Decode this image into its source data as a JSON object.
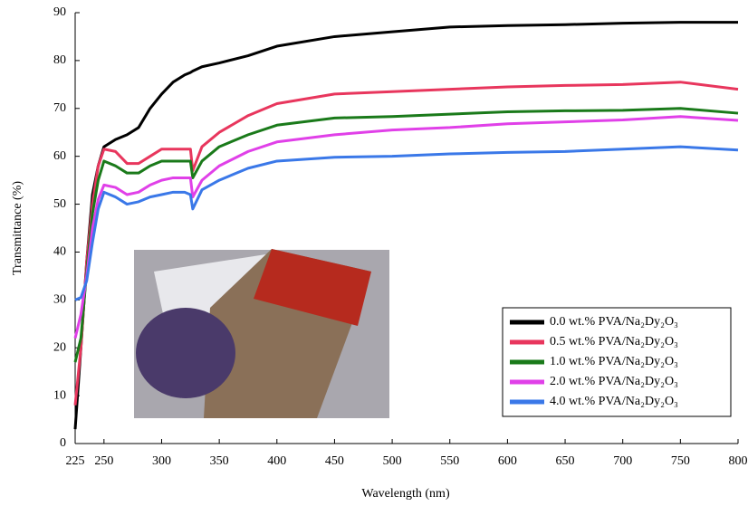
{
  "chart_data": {
    "type": "line",
    "x_label": "Wavelength (nm)",
    "y_label": "Transmittance (%)",
    "x": [
      225,
      230,
      235,
      240,
      245,
      250,
      260,
      270,
      280,
      290,
      300,
      310,
      320,
      325,
      327,
      335,
      350,
      375,
      400,
      450,
      500,
      550,
      600,
      650,
      700,
      750,
      800
    ],
    "series": [
      {
        "name": "0.0 wt.% PVA/Na₂Dy₂O₃",
        "color": "#000000",
        "values": [
          3,
          20,
          38,
          52,
          58,
          62,
          63.5,
          64.5,
          66,
          70,
          73,
          75.5,
          77,
          77.5,
          77.8,
          78.7,
          79.5,
          81,
          83,
          85,
          86,
          87,
          87.3,
          87.5,
          87.8,
          88,
          88
        ]
      },
      {
        "name": "0.5 wt.% PVA/Na₂Dy₂O₃",
        "color": "#e8365d",
        "values": [
          8,
          20,
          38,
          50,
          58,
          61.5,
          61,
          58.5,
          58.5,
          60,
          61.5,
          61.5,
          61.5,
          61.5,
          57,
          62,
          65,
          68.5,
          71,
          73,
          73.5,
          74,
          74.5,
          74.8,
          75,
          75.5,
          74
        ]
      },
      {
        "name": "1.0 wt.% PVA/Na₂Dy₂O₃",
        "color": "#1a7a1a",
        "values": [
          17,
          22,
          36,
          48,
          55,
          59,
          58,
          56.5,
          56.5,
          58,
          59,
          59,
          59,
          59,
          55.5,
          59,
          62,
          64.5,
          66.5,
          68,
          68.3,
          68.8,
          69.3,
          69.5,
          69.6,
          70,
          69
        ]
      },
      {
        "name": "2.0 wt.% PVA/Na₂Dy₂O₃",
        "color": "#e040e8",
        "values": [
          22,
          27,
          35,
          45,
          51,
          54,
          53.5,
          52,
          52.5,
          54,
          55,
          55.5,
          55.5,
          55.5,
          51.5,
          55,
          58,
          61,
          63,
          64.5,
          65.5,
          66,
          66.8,
          67.2,
          67.6,
          68.3,
          67.5
        ]
      },
      {
        "name": "4.0 wt.% PVA/Na₂Dy₂O₃",
        "color": "#3a78e8",
        "values": [
          30,
          30.5,
          34,
          42,
          49,
          52.5,
          51.5,
          50,
          50.5,
          51.5,
          52,
          52.5,
          52.5,
          52,
          49,
          53,
          55,
          57.5,
          59,
          59.8,
          60,
          60.5,
          60.8,
          61,
          61.5,
          62,
          61.3
        ]
      }
    ],
    "xlim": [
      225,
      800
    ],
    "xticks": [
      225,
      250,
      300,
      350,
      400,
      450,
      500,
      550,
      600,
      650,
      700,
      750,
      800
    ],
    "ylim": [
      0,
      90
    ],
    "yticks": [
      0,
      10,
      20,
      30,
      40,
      50,
      60,
      70,
      80,
      90
    ],
    "legend": "lower right"
  }
}
